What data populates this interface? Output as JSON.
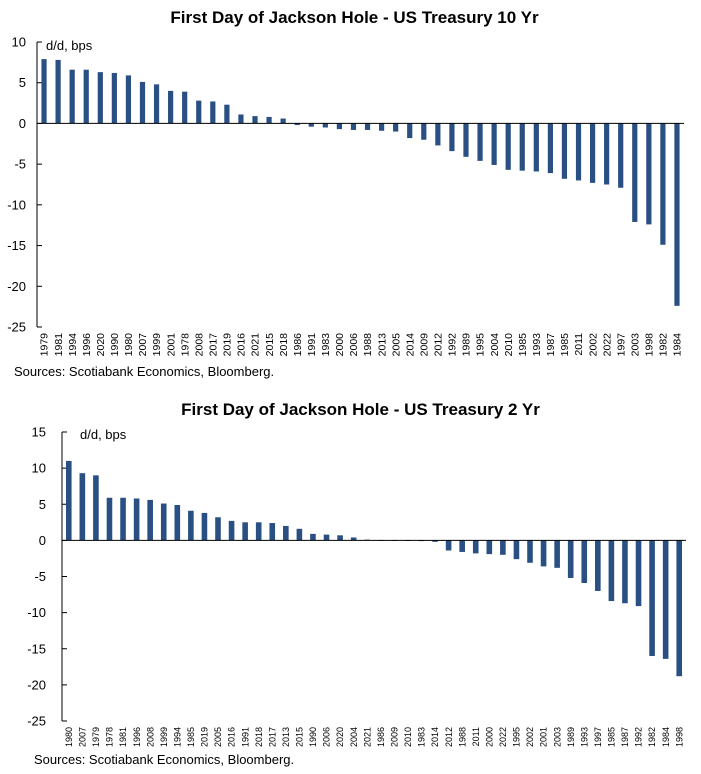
{
  "chart_data": [
    {
      "type": "bar",
      "title": "First Day of Jackson Hole - US Treasury 10 Yr",
      "ylabel": "d/d, bps",
      "xlabel": "",
      "ylim": [
        -25,
        10
      ],
      "yticks": [
        10,
        5,
        0,
        -5,
        -10,
        -15,
        -20,
        -25
      ],
      "grid": false,
      "legend": "none",
      "source": "Sources: Scotiabank Economics, Bloomberg.",
      "bar_color": "#2a4f82",
      "categories": [
        "1979",
        "1981",
        "1994",
        "1996",
        "2020",
        "1990",
        "1980",
        "2007",
        "1999",
        "2001",
        "1978",
        "2008",
        "2017",
        "2019",
        "2016",
        "2021",
        "2015",
        "2018",
        "1986",
        "1991",
        "1983",
        "2000",
        "2006",
        "1988",
        "2013",
        "2005",
        "2014",
        "2009",
        "2012",
        "1992",
        "1989",
        "1995",
        "2004",
        "2010",
        "1985",
        "1993",
        "1987",
        "1985",
        "2011",
        "2002",
        "2022",
        "1997",
        "2003",
        "1998",
        "1982",
        "1984"
      ],
      "values": [
        7.9,
        7.8,
        6.6,
        6.6,
        6.3,
        6.2,
        5.9,
        5.1,
        4.8,
        4.0,
        3.9,
        2.8,
        2.7,
        2.3,
        1.1,
        0.9,
        0.8,
        0.6,
        -0.2,
        -0.4,
        -0.5,
        -0.7,
        -0.8,
        -0.8,
        -0.9,
        -1.0,
        -1.8,
        -2.0,
        -2.7,
        -3.4,
        -4.1,
        -4.6,
        -5.1,
        -5.7,
        -5.8,
        -5.9,
        -6.1,
        -6.8,
        -7.0,
        -7.3,
        -7.5,
        -7.9,
        -12.1,
        -12.4,
        -14.9,
        -22.4
      ]
    },
    {
      "type": "bar",
      "title": "First Day of Jackson Hole - US Treasury 2 Yr",
      "ylabel": "d/d, bps",
      "xlabel": "",
      "ylim": [
        -25,
        15
      ],
      "yticks": [
        15,
        10,
        5,
        0,
        -5,
        -10,
        -15,
        -20,
        -25
      ],
      "grid": false,
      "legend": "none",
      "source": "Sources: Scotiabank Economics, Bloomberg.",
      "bar_color": "#2a4f82",
      "categories": [
        "1980",
        "2007",
        "1979",
        "1978",
        "1981",
        "1996",
        "2008",
        "1999",
        "1994",
        "1985",
        "2019",
        "2005",
        "2016",
        "1991",
        "2018",
        "2017",
        "2013",
        "2015",
        "1990",
        "2006",
        "2020",
        "2004",
        "2021",
        "1986",
        "2009",
        "2010",
        "1983",
        "2014",
        "2012",
        "1988",
        "2011",
        "2000",
        "2022",
        "1995",
        "2002",
        "2001",
        "2003",
        "1989",
        "1993",
        "1997",
        "1985",
        "1987",
        "1992",
        "1982",
        "1984",
        "1998"
      ],
      "values": [
        11.0,
        9.3,
        9.0,
        5.9,
        5.9,
        5.8,
        5.6,
        5.1,
        4.9,
        4.1,
        3.8,
        3.2,
        2.7,
        2.5,
        2.5,
        2.4,
        2.0,
        1.6,
        0.9,
        0.8,
        0.7,
        0.4,
        0.1,
        0.0,
        0.0,
        0.0,
        -0.1,
        -0.2,
        -1.4,
        -1.6,
        -1.8,
        -1.9,
        -2.0,
        -2.6,
        -3.1,
        -3.6,
        -3.8,
        -5.2,
        -5.9,
        -7.0,
        -8.4,
        -8.7,
        -9.1,
        -16.0,
        -16.4,
        -18.8
      ]
    }
  ]
}
